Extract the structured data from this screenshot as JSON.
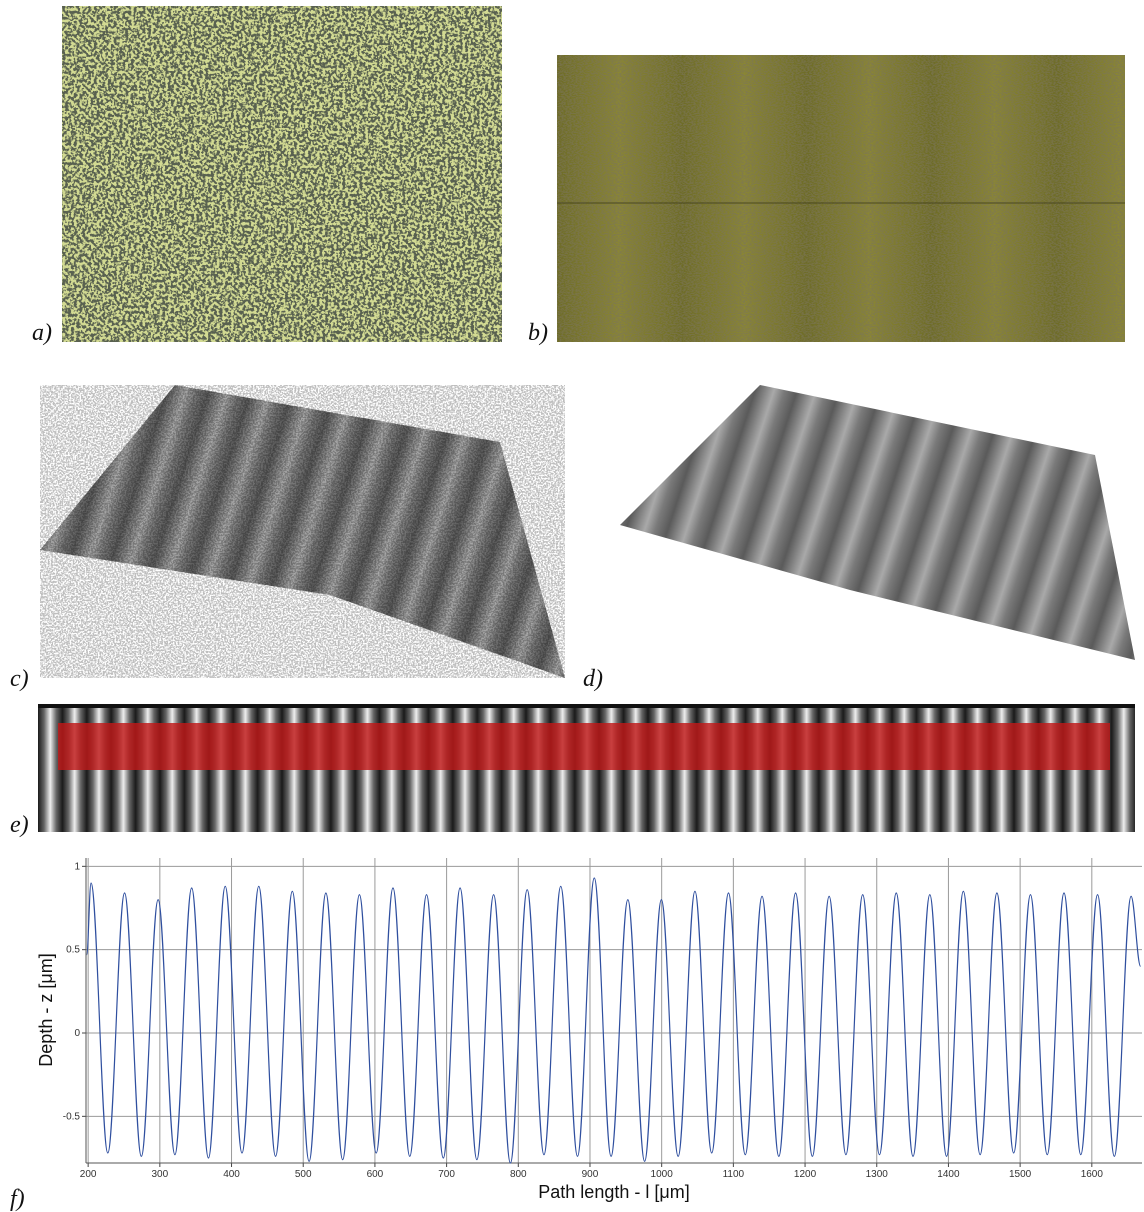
{
  "panel_labels": [
    "a)",
    "b)",
    "c)",
    "d)",
    "e)",
    "f)"
  ],
  "chart_data": {
    "type": "line",
    "xlabel": "Path length - l [μm]",
    "ylabel": "Depth - z [μm]",
    "color": "#2f4f9f",
    "grid": true,
    "xlim": [
      197,
      1670
    ],
    "ylim": [
      -0.78,
      1.05
    ],
    "xticks": [
      200,
      300,
      400,
      500,
      600,
      700,
      800,
      900,
      1000,
      1100,
      1200,
      1300,
      1400,
      1500,
      1600
    ],
    "yticks": [
      1,
      0.5,
      0,
      -0.5
    ],
    "x": [
      198,
      204,
      227.4,
      250.8,
      274.2,
      297.6,
      321,
      344.4,
      367.8,
      391.2,
      414.6,
      438,
      461.4,
      484.8,
      508.2,
      531.6,
      555,
      578.4,
      601.8,
      625.2,
      648.6,
      672,
      695.4,
      718.8,
      742.2,
      765.6,
      789,
      812.4,
      835.8,
      859.2,
      882.6,
      906,
      929.4,
      952.8,
      976.2,
      999.6,
      1023,
      1046.4,
      1069.8,
      1093.2,
      1116.6,
      1140,
      1163.4,
      1186.8,
      1210.2,
      1233.6,
      1257,
      1280.4,
      1303.8,
      1327.2,
      1350.6,
      1374,
      1397.4,
      1420.8,
      1444.2,
      1467.6,
      1491,
      1514.4,
      1537.8,
      1561.2,
      1584.6,
      1608,
      1631.4,
      1654.8,
      1668
    ],
    "values": [
      0.47,
      0.9,
      -0.72,
      0.84,
      -0.74,
      0.8,
      -0.73,
      0.87,
      -0.75,
      0.88,
      -0.72,
      0.88,
      -0.74,
      0.85,
      -0.77,
      0.84,
      -0.76,
      0.83,
      -0.72,
      0.87,
      -0.74,
      0.83,
      -0.75,
      0.87,
      -0.76,
      0.83,
      -0.78,
      0.86,
      -0.73,
      0.88,
      -0.74,
      0.93,
      -0.74,
      0.8,
      -0.77,
      0.8,
      -0.74,
      0.85,
      -0.72,
      0.84,
      -0.73,
      0.82,
      -0.74,
      0.84,
      -0.74,
      0.82,
      -0.73,
      0.83,
      -0.73,
      0.84,
      -0.74,
      0.83,
      -0.74,
      0.85,
      -0.73,
      0.84,
      -0.72,
      0.83,
      -0.73,
      0.84,
      -0.73,
      0.83,
      -0.74,
      0.82,
      0.4
    ]
  }
}
